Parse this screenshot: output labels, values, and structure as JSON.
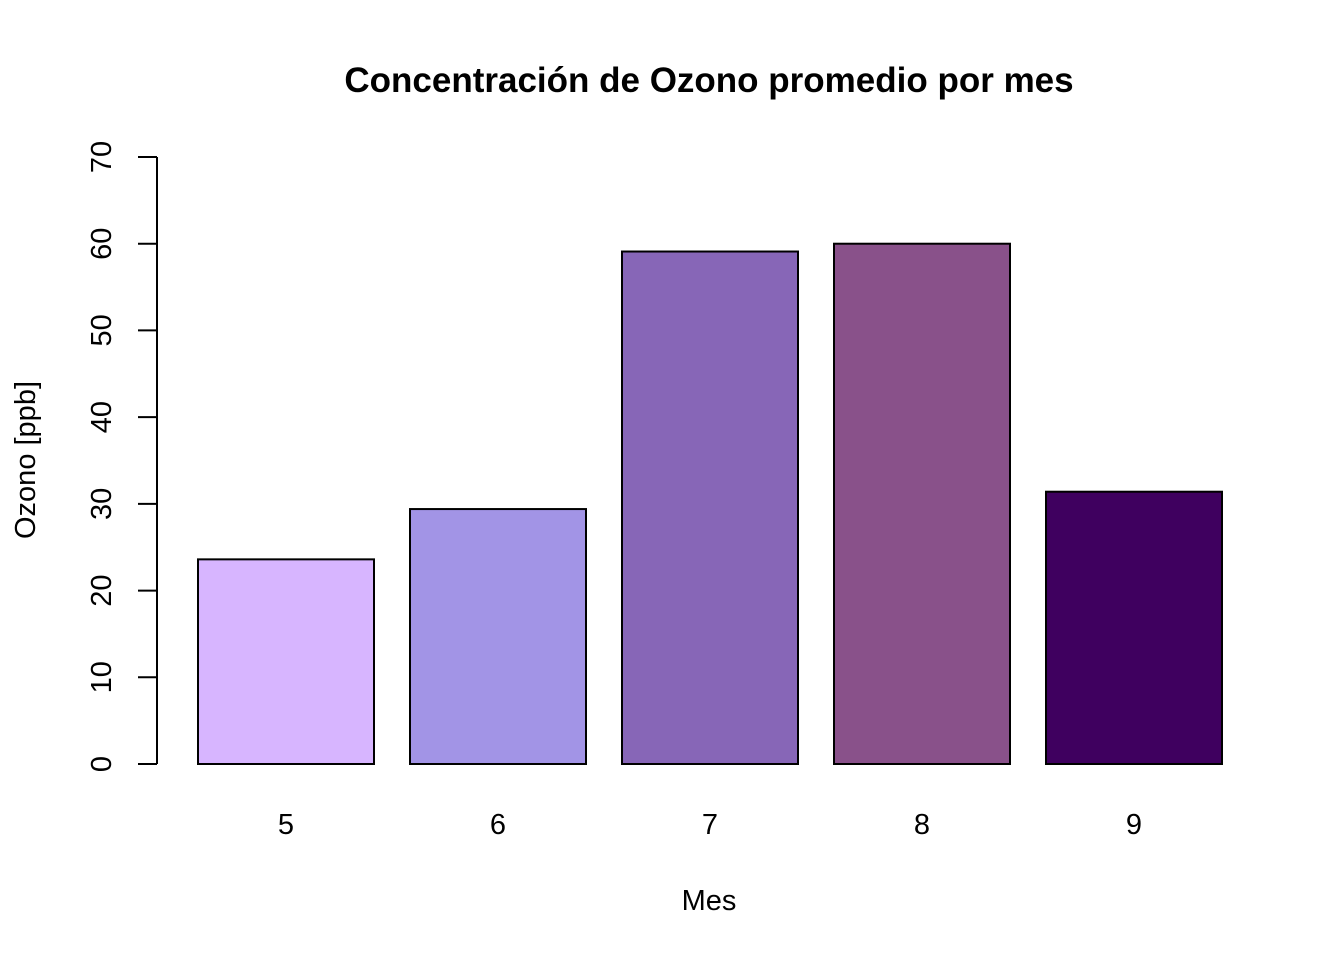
{
  "chart_data": {
    "type": "bar",
    "title": "Concentración de Ozono promedio por mes",
    "xlabel": "Mes",
    "ylabel": "Ozono [ppb]",
    "categories": [
      "5",
      "6",
      "7",
      "8",
      "9"
    ],
    "values": [
      23.6,
      29.4,
      59.1,
      60.0,
      31.4
    ],
    "colors": [
      "#D7B5FF",
      "#A294E6",
      "#8766B7",
      "#89518A",
      "#3F005F"
    ],
    "ylim": [
      0,
      70
    ],
    "yticks": [
      0,
      10,
      20,
      30,
      40,
      50,
      60,
      70
    ],
    "grid": false,
    "legend": "none"
  }
}
